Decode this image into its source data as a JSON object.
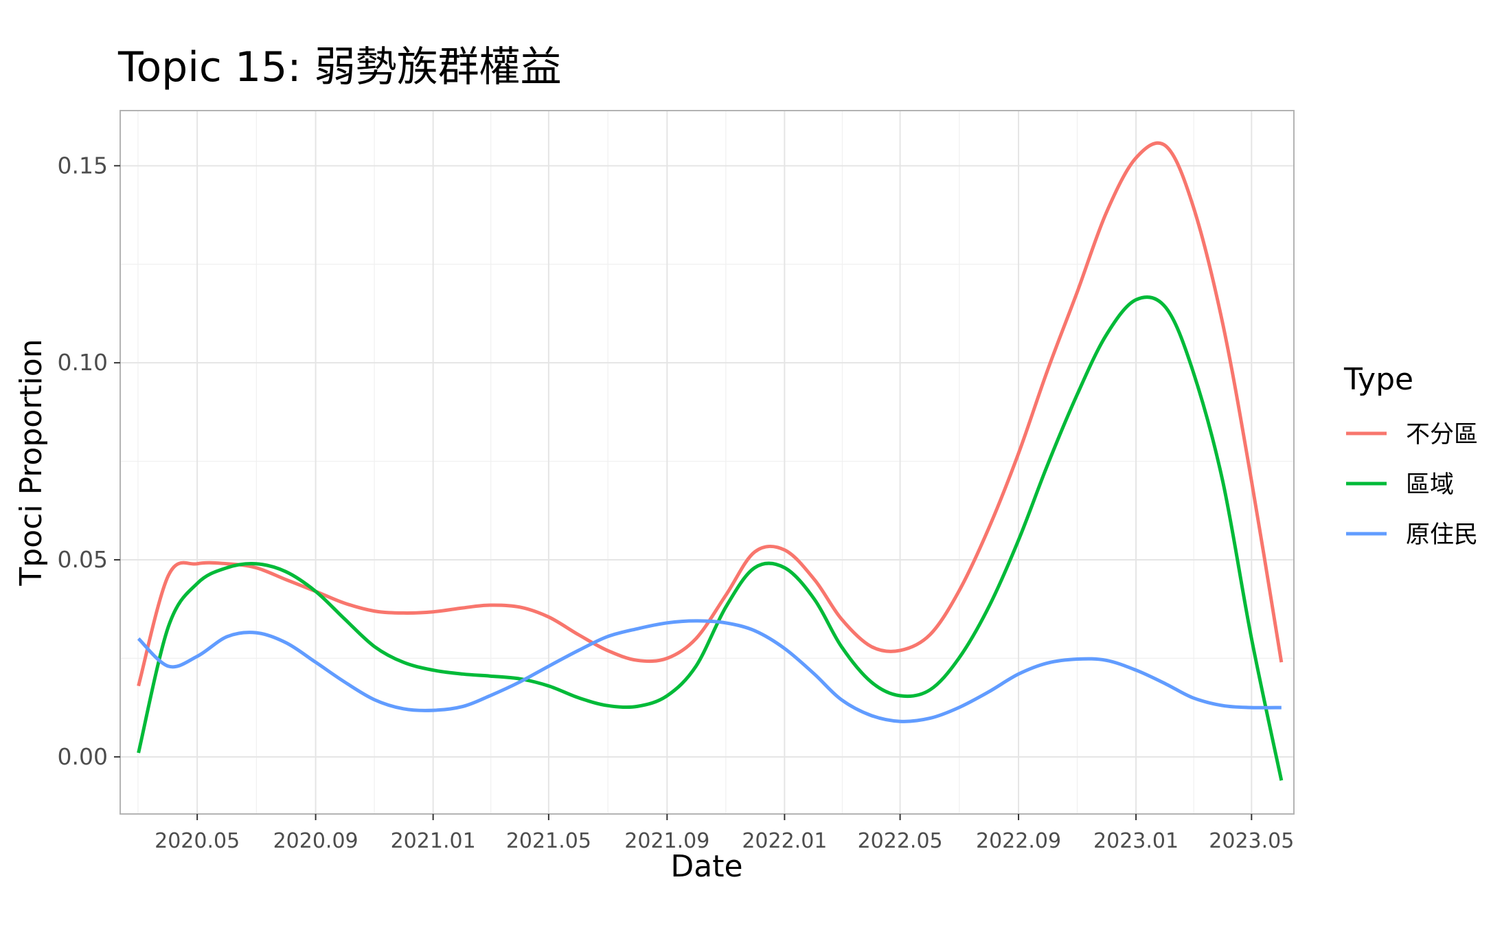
{
  "chart_data": {
    "type": "line",
    "title": "Topic 15: 弱勢族群權益",
    "xlabel": "Date",
    "ylabel": "Tpoci Proportion",
    "x_ticks": [
      "2020.05",
      "2020.09",
      "2021.01",
      "2021.05",
      "2021.09",
      "2022.01",
      "2022.05",
      "2022.09",
      "2023.01",
      "2023.05"
    ],
    "y_ticks": [
      "0.00",
      "0.05",
      "0.10",
      "0.15"
    ],
    "xlim": [
      "2020-02-11",
      "2023-06-14"
    ],
    "ylim": [
      -0.0145,
      0.164
    ],
    "grid": true,
    "legend": {
      "title": "Type",
      "position": "right"
    },
    "x": [
      "2020-03",
      "2020-04",
      "2020-05",
      "2020-06",
      "2020-07",
      "2020-08",
      "2020-09",
      "2020-10",
      "2020-11",
      "2020-12",
      "2021-01",
      "2021-02",
      "2021-03",
      "2021-04",
      "2021-05",
      "2021-06",
      "2021-07",
      "2021-08",
      "2021-09",
      "2021-10",
      "2021-11",
      "2021-12",
      "2022-01",
      "2022-02",
      "2022-03",
      "2022-04",
      "2022-05",
      "2022-06",
      "2022-07",
      "2022-08",
      "2022-09",
      "2022-10",
      "2022-11",
      "2022-12",
      "2023-01",
      "2023-02",
      "2023-03",
      "2023-04",
      "2023-05",
      "2023-06"
    ],
    "series": [
      {
        "name": "不分區",
        "color": "#F8766D",
        "values": [
          0.018,
          0.046,
          0.049,
          0.049,
          0.048,
          0.045,
          0.042,
          0.039,
          0.037,
          0.0365,
          0.0368,
          0.0378,
          0.0385,
          0.038,
          0.0355,
          0.031,
          0.027,
          0.0245,
          0.025,
          0.03,
          0.041,
          0.052,
          0.0525,
          0.045,
          0.035,
          0.028,
          0.027,
          0.031,
          0.042,
          0.058,
          0.077,
          0.098,
          0.118,
          0.138,
          0.152,
          0.155,
          0.14,
          0.11,
          0.07,
          0.024
        ]
      },
      {
        "name": "區域",
        "color": "#00BA38",
        "values": [
          0.001,
          0.033,
          0.044,
          0.048,
          0.049,
          0.047,
          0.042,
          0.035,
          0.028,
          0.024,
          0.022,
          0.021,
          0.0205,
          0.0198,
          0.018,
          0.015,
          0.013,
          0.0128,
          0.0155,
          0.023,
          0.038,
          0.048,
          0.048,
          0.04,
          0.028,
          0.019,
          0.0155,
          0.017,
          0.025,
          0.038,
          0.055,
          0.074,
          0.092,
          0.107,
          0.116,
          0.114,
          0.098,
          0.07,
          0.03,
          -0.006
        ]
      },
      {
        "name": "原住民",
        "color": "#619CFF",
        "values": [
          0.03,
          0.023,
          0.0255,
          0.0305,
          0.0315,
          0.029,
          0.024,
          0.019,
          0.0145,
          0.0122,
          0.0118,
          0.0128,
          0.0155,
          0.019,
          0.023,
          0.027,
          0.0305,
          0.0325,
          0.034,
          0.0345,
          0.034,
          0.032,
          0.0275,
          0.021,
          0.0145,
          0.0105,
          0.009,
          0.0098,
          0.0125,
          0.0165,
          0.021,
          0.0238,
          0.0248,
          0.0245,
          0.022,
          0.0185,
          0.015,
          0.013,
          0.0125,
          0.0125
        ]
      }
    ]
  }
}
